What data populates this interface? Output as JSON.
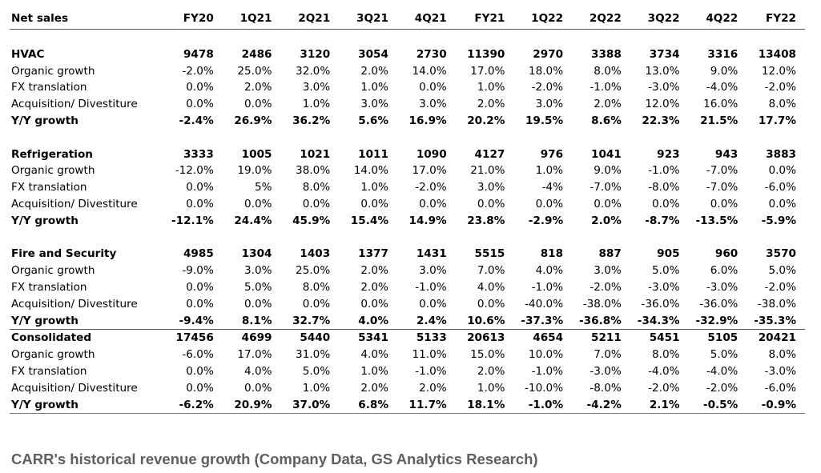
{
  "chart_data": {
    "type": "table",
    "title": "",
    "caption": "CARR's historical revenue growth (Company Data, GS Analytics Research)",
    "header_label": "Net sales",
    "columns": [
      "FY20",
      "1Q21",
      "2Q21",
      "3Q21",
      "4Q21",
      "FY21",
      "1Q22",
      "2Q22",
      "3Q22",
      "4Q22",
      "FY22"
    ],
    "segments": [
      {
        "name": "HVAC",
        "net_sales": [
          "9478",
          "2486",
          "3120",
          "3054",
          "2730",
          "11390",
          "2970",
          "3388",
          "3734",
          "3316",
          "13408"
        ],
        "rows": [
          {
            "label": "Organic growth",
            "values": [
              "-2.0%",
              "25.0%",
              "32.0%",
              "2.0%",
              "14.0%",
              "17.0%",
              "18.0%",
              "8.0%",
              "13.0%",
              "9.0%",
              "12.0%"
            ]
          },
          {
            "label": "FX translation",
            "values": [
              "0.0%",
              "2.0%",
              "3.0%",
              "1.0%",
              "0.0%",
              "1.0%",
              "-2.0%",
              "-1.0%",
              "-3.0%",
              "-4.0%",
              "-2.0%"
            ]
          },
          {
            "label": "Acquisition/ Divestiture",
            "values": [
              "0.0%",
              "0.0%",
              "1.0%",
              "3.0%",
              "3.0%",
              "2.0%",
              "3.0%",
              "2.0%",
              "12.0%",
              "16.0%",
              "8.0%"
            ]
          },
          {
            "label": "Y/Y growth",
            "bold": true,
            "values": [
              "-2.4%",
              "26.9%",
              "36.2%",
              "5.6%",
              "16.9%",
              "20.2%",
              "19.5%",
              "8.6%",
              "22.3%",
              "21.5%",
              "17.7%"
            ]
          }
        ]
      },
      {
        "name": "Refrigeration",
        "net_sales": [
          "3333",
          "1005",
          "1021",
          "1011",
          "1090",
          "4127",
          "976",
          "1041",
          "923",
          "943",
          "3883"
        ],
        "rows": [
          {
            "label": "Organic growth",
            "values": [
              "-12.0%",
              "19.0%",
              "38.0%",
              "14.0%",
              "17.0%",
              "21.0%",
              "1.0%",
              "9.0%",
              "-1.0%",
              "-7.0%",
              "0.0%"
            ]
          },
          {
            "label": "FX translation",
            "values": [
              "0.0%",
              "5%",
              "8.0%",
              "1.0%",
              "-2.0%",
              "3.0%",
              "-4%",
              "-7.0%",
              "-8.0%",
              "-7.0%",
              "-6.0%"
            ]
          },
          {
            "label": "Acquisition/ Divestiture",
            "values": [
              "0.0%",
              "0.0%",
              "0.0%",
              "0.0%",
              "0.0%",
              "0.0%",
              "0.0%",
              "0.0%",
              "0.0%",
              "0.0%",
              "0.0%"
            ]
          },
          {
            "label": "Y/Y growth",
            "bold": true,
            "values": [
              "-12.1%",
              "24.4%",
              "45.9%",
              "15.4%",
              "14.9%",
              "23.8%",
              "-2.9%",
              "2.0%",
              "-8.7%",
              "-13.5%",
              "-5.9%"
            ]
          }
        ]
      },
      {
        "name": "Fire and Security",
        "net_sales": [
          "4985",
          "1304",
          "1403",
          "1377",
          "1431",
          "5515",
          "818",
          "887",
          "905",
          "960",
          "3570"
        ],
        "rows": [
          {
            "label": "Organic growth",
            "values": [
              "-9.0%",
              "3.0%",
              "25.0%",
              "2.0%",
              "3.0%",
              "7.0%",
              "4.0%",
              "3.0%",
              "5.0%",
              "6.0%",
              "5.0%"
            ]
          },
          {
            "label": "FX translation",
            "values": [
              "0.0%",
              "5.0%",
              "8.0%",
              "2.0%",
              "-1.0%",
              "4.0%",
              "-1.0%",
              "-2.0%",
              "-3.0%",
              "-3.0%",
              "-2.0%"
            ]
          },
          {
            "label": "Acquisition/ Divestiture",
            "values": [
              "0.0%",
              "0.0%",
              "0.0%",
              "0.0%",
              "0.0%",
              "0.0%",
              "-40.0%",
              "-38.0%",
              "-36.0%",
              "-36.0%",
              "-38.0%"
            ]
          },
          {
            "label": "Y/Y growth",
            "bold": true,
            "values": [
              "-9.4%",
              "8.1%",
              "32.7%",
              "4.0%",
              "2.4%",
              "10.6%",
              "-37.3%",
              "-36.8%",
              "-34.3%",
              "-32.9%",
              "-35.3%"
            ]
          }
        ]
      },
      {
        "name": "Consolidated",
        "net_sales": [
          "17456",
          "4699",
          "5440",
          "5341",
          "5133",
          "20613",
          "4654",
          "5211",
          "5451",
          "5105",
          "20421"
        ],
        "rows": [
          {
            "label": "Organic growth",
            "values": [
              "-6.0%",
              "17.0%",
              "31.0%",
              "4.0%",
              "11.0%",
              "15.0%",
              "10.0%",
              "7.0%",
              "8.0%",
              "5.0%",
              "8.0%"
            ]
          },
          {
            "label": "FX translation",
            "values": [
              "0.0%",
              "4.0%",
              "5.0%",
              "1.0%",
              "-1.0%",
              "2.0%",
              "-1.0%",
              "-3.0%",
              "-4.0%",
              "-4.0%",
              "-3.0%"
            ]
          },
          {
            "label": "Acquisition/ Divestiture",
            "values": [
              "0.0%",
              "0.0%",
              "1.0%",
              "2.0%",
              "2.0%",
              "1.0%",
              "-10.0%",
              "-8.0%",
              "-2.0%",
              "-2.0%",
              "-6.0%"
            ]
          },
          {
            "label": "Y/Y growth",
            "bold": true,
            "values": [
              "-6.2%",
              "20.9%",
              "37.0%",
              "6.8%",
              "11.7%",
              "18.1%",
              "-1.0%",
              "-4.2%",
              "2.1%",
              "-0.5%",
              "-0.9%"
            ]
          }
        ]
      }
    ]
  }
}
